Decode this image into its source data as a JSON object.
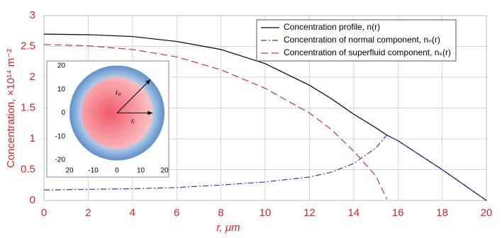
{
  "chart_data": {
    "type": "line",
    "x_label": "r, μm",
    "y_label": "Concentration, ×10¹⁴ m⁻²",
    "x": [
      0,
      2,
      4,
      6,
      8,
      10,
      12,
      13,
      14,
      15,
      15.5,
      16,
      18,
      20
    ],
    "series": [
      {
        "name": "Concentration profile, n(r)",
        "color": "#000000",
        "dash": "none",
        "values": [
          2.7,
          2.69,
          2.66,
          2.58,
          2.45,
          2.22,
          1.87,
          1.65,
          1.4,
          1.18,
          1.06,
          0.97,
          0.5,
          0
        ]
      },
      {
        "name": "Concentration of normal component, nₙ(r)",
        "color": "#3a3ab0",
        "dash": "8 3 2 3",
        "values": [
          0.17,
          0.18,
          0.19,
          0.21,
          0.25,
          0.3,
          0.38,
          0.46,
          0.6,
          0.85,
          1.06,
          0.97,
          0.5,
          0
        ]
      },
      {
        "name": "Concentration of superfluid component, nₛ(r)",
        "color": "#c0393b",
        "dash": "10 5",
        "values": [
          2.53,
          2.51,
          2.45,
          2.33,
          2.12,
          1.82,
          1.42,
          1.15,
          0.8,
          0.4,
          0.02,
          null,
          null,
          null
        ]
      }
    ],
    "xlim": [
      0,
      20
    ],
    "xticks": [
      0,
      2,
      4,
      6,
      8,
      10,
      12,
      14,
      16,
      18,
      20
    ],
    "ylim": [
      0,
      3
    ],
    "yticks": [
      0,
      0.5,
      1,
      1.5,
      2,
      2.5,
      3
    ],
    "grid": true,
    "legend": "top-right",
    "inset": {
      "xlim": [
        -20,
        20
      ],
      "ylim": [
        -20,
        20
      ],
      "xticks": [
        {
          "value": -20,
          "label": "20"
        },
        -10,
        0,
        10,
        20
      ],
      "yticks": [
        20,
        10,
        0,
        -10,
        -20
      ],
      "outer_radius": 20,
      "inner_radius": 15,
      "outer_label": "r₀",
      "inner_label": "rᵢ"
    }
  }
}
